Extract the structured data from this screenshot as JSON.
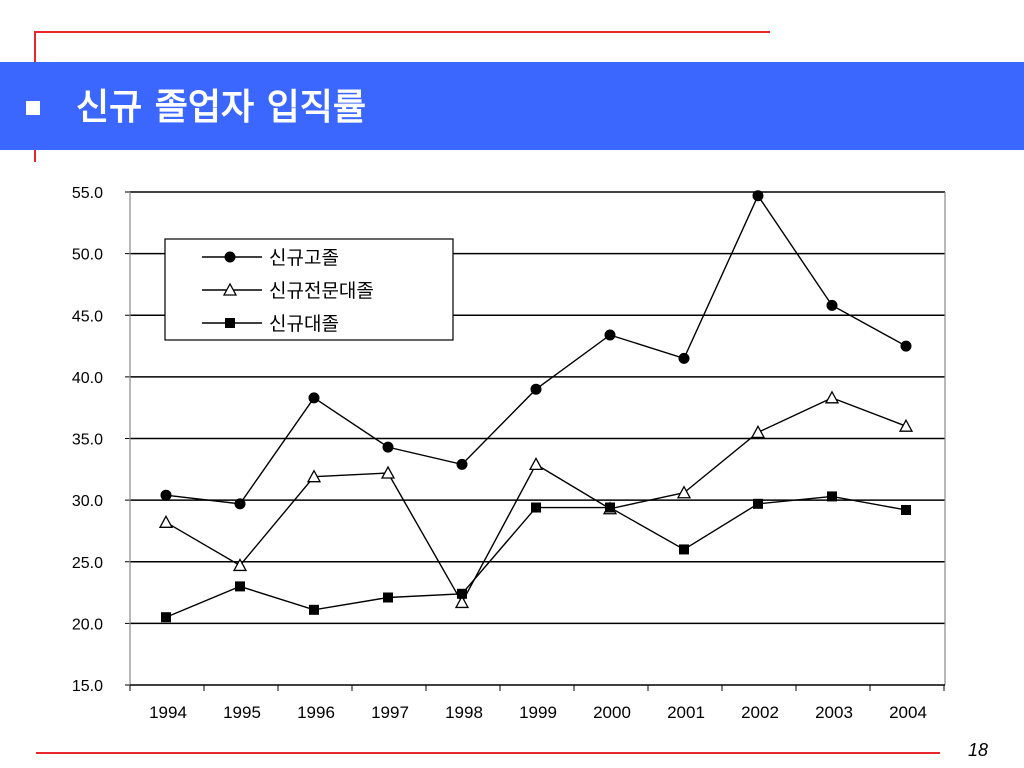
{
  "slide": {
    "title": "신규 졸업자 입직률",
    "page_number": "18"
  },
  "colors": {
    "title_bar": "#3b67ff",
    "accent_line": "#e8262c",
    "title_text": "#ffffff"
  },
  "chart_data": {
    "type": "line",
    "title": "",
    "xlabel": "",
    "ylabel": "",
    "categories": [
      "1994",
      "1995",
      "1996",
      "1997",
      "1998",
      "1999",
      "2000",
      "2001",
      "2002",
      "2003",
      "2004"
    ],
    "ylim": [
      15.0,
      55.0
    ],
    "yticks": [
      "15.0",
      "20.0",
      "25.0",
      "30.0",
      "35.0",
      "40.0",
      "45.0",
      "50.0",
      "55.0"
    ],
    "grid": "horizontal",
    "legend_position": "top-left",
    "series": [
      {
        "name": "신규고졸",
        "marker": "filled-circle",
        "values": [
          30.4,
          29.7,
          38.3,
          34.3,
          32.9,
          39.0,
          43.4,
          41.5,
          54.7,
          45.8,
          42.5
        ]
      },
      {
        "name": "신규전문대졸",
        "marker": "open-triangle",
        "values": [
          28.2,
          24.7,
          31.9,
          32.2,
          21.7,
          32.9,
          29.3,
          30.6,
          35.5,
          38.3,
          36.0
        ]
      },
      {
        "name": "신규대졸",
        "marker": "filled-square",
        "values": [
          20.5,
          23.0,
          21.1,
          22.1,
          22.4,
          29.4,
          29.4,
          26.0,
          29.7,
          30.3,
          29.2
        ]
      }
    ]
  }
}
